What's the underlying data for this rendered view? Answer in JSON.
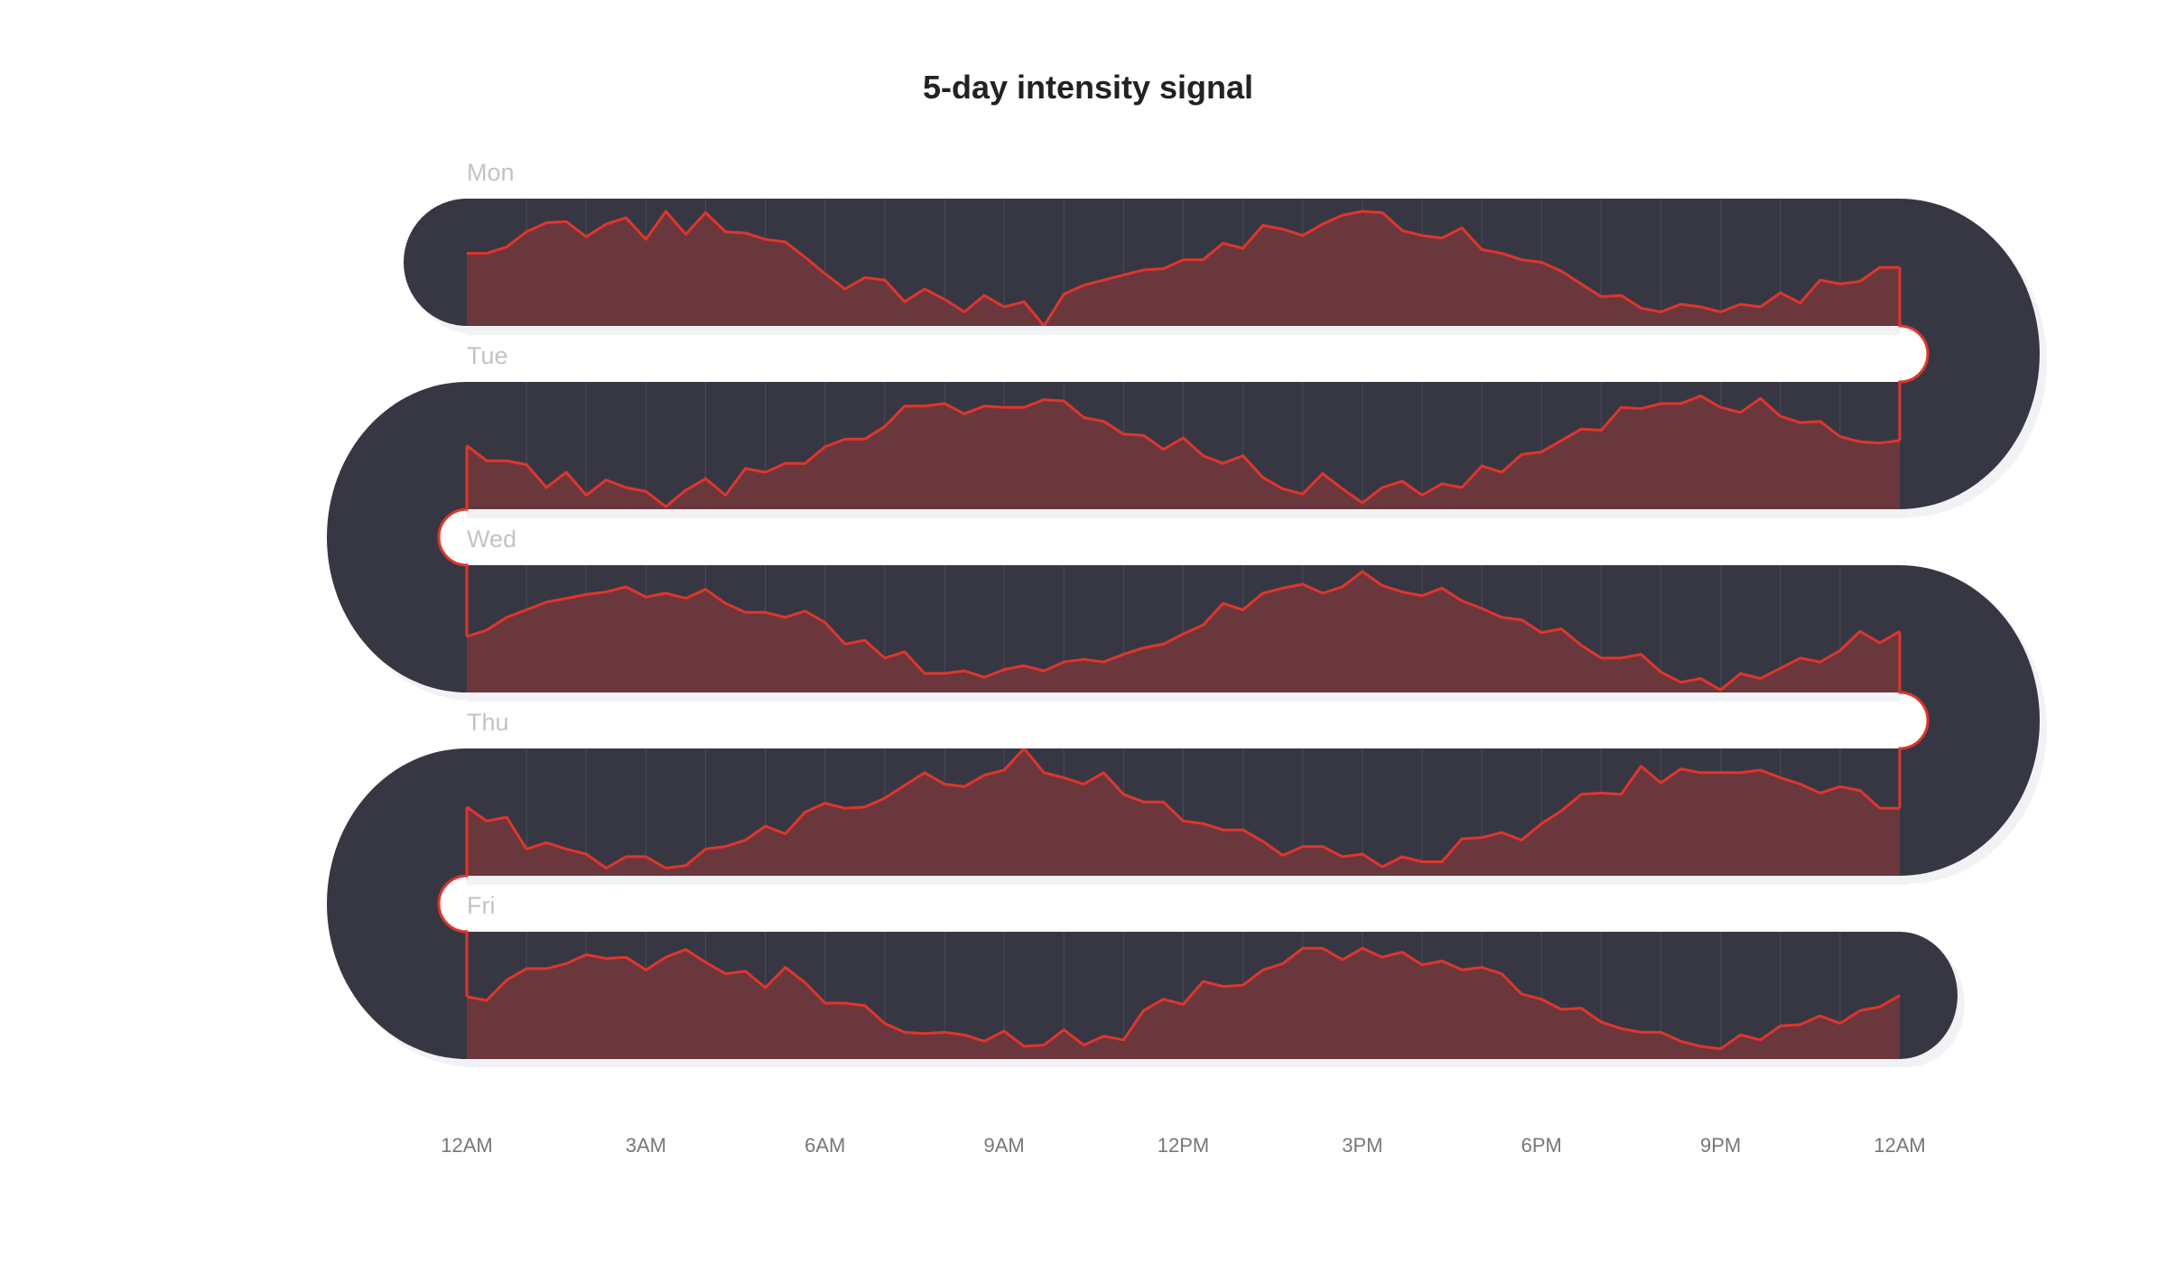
{
  "title": "5-day intensity signal",
  "colors": {
    "band": "#373744",
    "area_fill": "#6a373d",
    "line": "#e0352b",
    "shadow": "#f1f2f5",
    "gridline": "#4a4a57",
    "day_label": "#c3c3c3",
    "axis_label": "#777777"
  },
  "x_axis": {
    "ticks": [
      "12AM",
      "3AM",
      "6AM",
      "9AM",
      "12PM",
      "3PM",
      "6PM",
      "9PM",
      "12AM"
    ]
  },
  "chart_data": {
    "type": "area",
    "title": "5-day intensity signal",
    "xlabel": "",
    "ylabel": "",
    "x_ticks": [
      "12AM",
      "3AM",
      "6AM",
      "9AM",
      "12PM",
      "3PM",
      "6PM",
      "9PM",
      "12AM"
    ],
    "x_range_hours": [
      0,
      24
    ],
    "sample_interval_minutes": 20,
    "y_range": [
      0,
      1
    ],
    "grid": "vertical hourly gridlines",
    "legend": "none",
    "layout": "serpentine (boustrophedon) track, one row per day",
    "series": [
      {
        "name": "Mon",
        "values": [
          0.57,
          0.57,
          0.62,
          0.74,
          0.81,
          0.82,
          0.7,
          0.8,
          0.85,
          0.68,
          0.9,
          0.72,
          0.89,
          0.74,
          0.73,
          0.68,
          0.66,
          0.54,
          0.41,
          0.29,
          0.38,
          0.36,
          0.19,
          0.29,
          0.21,
          0.11,
          0.24,
          0.15,
          0.19,
          0.0,
          0.25,
          0.32,
          0.36,
          0.4,
          0.44,
          0.45,
          0.52,
          0.52,
          0.65,
          0.61,
          0.79,
          0.76,
          0.71,
          0.8,
          0.87,
          0.9,
          0.89,
          0.75,
          0.71,
          0.69,
          0.77,
          0.6,
          0.57,
          0.52,
          0.5,
          0.43,
          0.33,
          0.23,
          0.24,
          0.14,
          0.11,
          0.17,
          0.15,
          0.11,
          0.17,
          0.15,
          0.26,
          0.18,
          0.36,
          0.33,
          0.35,
          0.46,
          0.46
        ]
      },
      {
        "name": "Tue",
        "values": [
          0.5,
          0.38,
          0.38,
          0.35,
          0.17,
          0.29,
          0.11,
          0.23,
          0.17,
          0.14,
          0.02,
          0.15,
          0.24,
          0.11,
          0.32,
          0.29,
          0.36,
          0.36,
          0.49,
          0.55,
          0.55,
          0.65,
          0.81,
          0.81,
          0.83,
          0.75,
          0.81,
          0.8,
          0.8,
          0.86,
          0.85,
          0.72,
          0.69,
          0.59,
          0.58,
          0.47,
          0.56,
          0.42,
          0.36,
          0.42,
          0.25,
          0.16,
          0.12,
          0.28,
          0.16,
          0.05,
          0.17,
          0.22,
          0.11,
          0.2,
          0.17,
          0.34,
          0.29,
          0.43,
          0.45,
          0.54,
          0.63,
          0.62,
          0.8,
          0.79,
          0.83,
          0.83,
          0.89,
          0.8,
          0.76,
          0.87,
          0.73,
          0.68,
          0.69,
          0.57,
          0.53,
          0.52,
          0.54
        ]
      },
      {
        "name": "Wed",
        "values": [
          0.44,
          0.49,
          0.59,
          0.65,
          0.71,
          0.74,
          0.77,
          0.79,
          0.83,
          0.75,
          0.78,
          0.74,
          0.81,
          0.7,
          0.63,
          0.63,
          0.59,
          0.64,
          0.55,
          0.38,
          0.41,
          0.27,
          0.32,
          0.15,
          0.15,
          0.17,
          0.12,
          0.18,
          0.21,
          0.17,
          0.24,
          0.26,
          0.24,
          0.3,
          0.35,
          0.38,
          0.46,
          0.53,
          0.7,
          0.65,
          0.78,
          0.82,
          0.85,
          0.78,
          0.83,
          0.95,
          0.84,
          0.79,
          0.76,
          0.82,
          0.72,
          0.66,
          0.59,
          0.57,
          0.47,
          0.5,
          0.37,
          0.27,
          0.27,
          0.3,
          0.16,
          0.08,
          0.11,
          0.02,
          0.15,
          0.11,
          0.19,
          0.27,
          0.24,
          0.33,
          0.48,
          0.39,
          0.48
        ]
      },
      {
        "name": "Thu",
        "values": [
          0.54,
          0.43,
          0.46,
          0.21,
          0.26,
          0.21,
          0.17,
          0.06,
          0.15,
          0.15,
          0.06,
          0.08,
          0.21,
          0.23,
          0.28,
          0.39,
          0.33,
          0.5,
          0.57,
          0.53,
          0.54,
          0.61,
          0.71,
          0.81,
          0.72,
          0.7,
          0.79,
          0.83,
          1.0,
          0.81,
          0.77,
          0.72,
          0.81,
          0.64,
          0.58,
          0.58,
          0.43,
          0.41,
          0.36,
          0.36,
          0.27,
          0.16,
          0.23,
          0.23,
          0.15,
          0.17,
          0.07,
          0.15,
          0.11,
          0.11,
          0.29,
          0.3,
          0.34,
          0.28,
          0.41,
          0.51,
          0.64,
          0.65,
          0.64,
          0.86,
          0.73,
          0.84,
          0.81,
          0.81,
          0.81,
          0.83,
          0.77,
          0.72,
          0.65,
          0.7,
          0.67,
          0.53,
          0.53
        ]
      },
      {
        "name": "Fri",
        "values": [
          0.49,
          0.46,
          0.62,
          0.71,
          0.71,
          0.75,
          0.82,
          0.79,
          0.8,
          0.7,
          0.8,
          0.86,
          0.76,
          0.67,
          0.69,
          0.56,
          0.72,
          0.6,
          0.44,
          0.44,
          0.42,
          0.28,
          0.21,
          0.2,
          0.21,
          0.19,
          0.14,
          0.22,
          0.1,
          0.11,
          0.23,
          0.11,
          0.18,
          0.15,
          0.38,
          0.47,
          0.43,
          0.61,
          0.57,
          0.58,
          0.7,
          0.75,
          0.87,
          0.87,
          0.78,
          0.87,
          0.8,
          0.84,
          0.74,
          0.77,
          0.7,
          0.72,
          0.67,
          0.51,
          0.47,
          0.39,
          0.4,
          0.29,
          0.24,
          0.21,
          0.21,
          0.14,
          0.1,
          0.08,
          0.19,
          0.15,
          0.26,
          0.27,
          0.34,
          0.28,
          0.38,
          0.41,
          0.5
        ]
      }
    ]
  }
}
